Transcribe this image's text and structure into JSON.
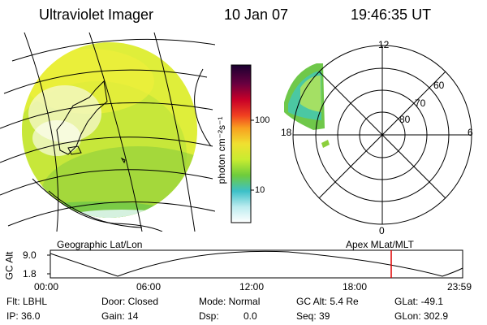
{
  "header": {
    "title": "Ultraviolet Imager",
    "date": "10 Jan 07",
    "time": "19:46:35 UT"
  },
  "colorbar": {
    "unit_label": "photon cm⁻²s⁻¹",
    "tick_100": "100",
    "tick_10": "10"
  },
  "polar": {
    "lat_labels": [
      "60",
      "70",
      "80"
    ],
    "mlt_labels": {
      "top": "12",
      "left": "18",
      "right": "6",
      "bottom": "0"
    }
  },
  "labels": {
    "geographic": "Geographic Lat/Lon",
    "apex": "Apex  MLat/MLT"
  },
  "altplot": {
    "axis_label": "GC Alt",
    "y_top": "9.0",
    "y_bottom": "1.8",
    "x_ticks": [
      "00:00",
      "06:00",
      "12:00",
      "18:00",
      "23:59"
    ]
  },
  "info": {
    "flt": "Flt: LBHL",
    "ip": "IP: 36.0",
    "door": "Door: Closed",
    "gain": "Gain: 14",
    "mode": "Mode: Normal",
    "dsp_label": "Dsp:",
    "dsp_value": "0.0",
    "gc_alt": "GC Alt: 5.4 Re",
    "seq": "Seq: 39",
    "glat": "GLat: -49.1",
    "glon": "GLon: 302.9"
  },
  "colors": {
    "dayglow_yellow": "#e6f03c",
    "dayglow_green": "#8cd23c",
    "polar_cyan": "#3cc8c8",
    "marker_red": "#e00000"
  }
}
